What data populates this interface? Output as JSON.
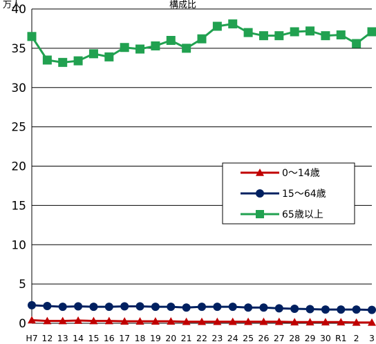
{
  "chart_data": {
    "type": "line",
    "title": "構成比",
    "ylabel": "万人",
    "xlabel": "",
    "ylim": [
      0,
      40
    ],
    "yticks": [
      0,
      5,
      10,
      15,
      20,
      25,
      30,
      35,
      40
    ],
    "grid": true,
    "legend_position": "center-right",
    "categories": [
      "H7",
      "12",
      "13",
      "14",
      "15",
      "16",
      "17",
      "18",
      "19",
      "20",
      "21",
      "22",
      "23",
      "24",
      "25",
      "26",
      "27",
      "28",
      "29",
      "30",
      "R1",
      "2",
      "3"
    ],
    "series": [
      {
        "name": "0～14歳",
        "color": "#c00000",
        "marker": "triangle",
        "values": [
          0.4,
          0.3,
          0.3,
          0.35,
          0.3,
          0.3,
          0.25,
          0.25,
          0.25,
          0.25,
          0.2,
          0.2,
          0.2,
          0.2,
          0.2,
          0.2,
          0.2,
          0.15,
          0.15,
          0.15,
          0.15,
          0.1,
          0.1
        ]
      },
      {
        "name": "15～64歳",
        "color": "#002060",
        "marker": "circle",
        "values": [
          2.3,
          2.2,
          2.1,
          2.15,
          2.1,
          2.1,
          2.15,
          2.15,
          2.1,
          2.1,
          2.0,
          2.1,
          2.1,
          2.1,
          2.0,
          2.0,
          1.9,
          1.85,
          1.8,
          1.75,
          1.75,
          1.75,
          1.7
        ]
      },
      {
        "name": "65歳以上",
        "color": "#21a150",
        "marker": "square",
        "values": [
          36.5,
          33.5,
          33.2,
          33.4,
          34.3,
          33.9,
          35.1,
          34.9,
          35.3,
          36.0,
          35.0,
          36.2,
          37.8,
          38.1,
          37.0,
          36.6,
          36.6,
          37.1,
          37.2,
          36.6,
          36.7,
          35.6,
          37.1
        ]
      }
    ]
  }
}
